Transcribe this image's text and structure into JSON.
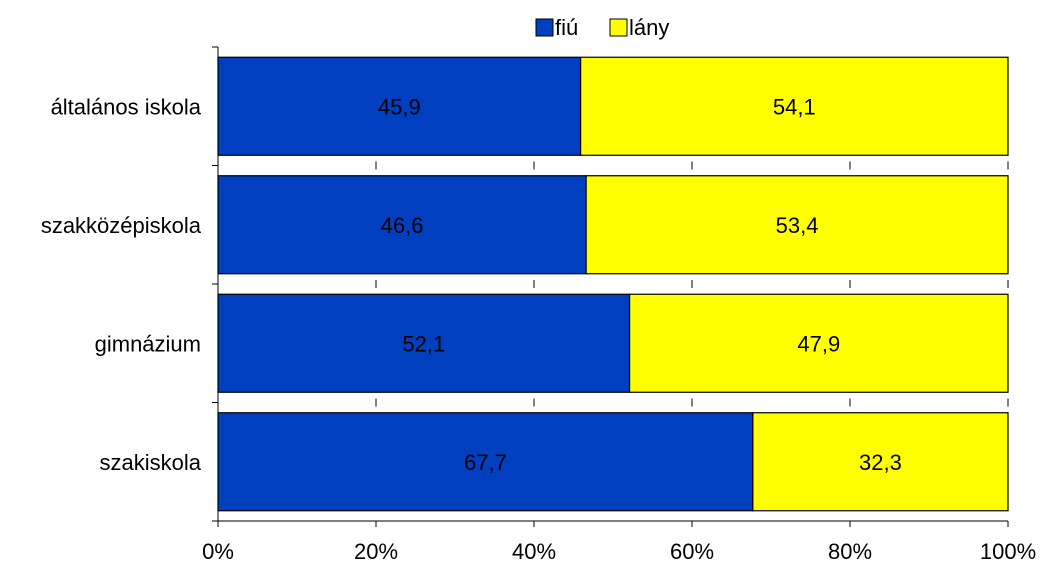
{
  "chart_data": {
    "type": "bar",
    "orientation": "horizontal",
    "stacked": "percent",
    "categories": [
      "általános iskola",
      "szakközépiskola",
      "gimnázium",
      "szakiskola"
    ],
    "series": [
      {
        "name": "fiú",
        "color": "#0040C0",
        "values": [
          45.9,
          46.6,
          52.1,
          67.7
        ]
      },
      {
        "name": "lány",
        "color": "#FFFF00",
        "values": [
          54.1,
          53.4,
          47.9,
          32.3
        ]
      }
    ],
    "data_labels": [
      [
        "45,9",
        "46,6",
        "52,1",
        "67,7"
      ],
      [
        "54,1",
        "53,4",
        "47,9",
        "32,3"
      ]
    ],
    "x_ticks": [
      "0%",
      "20%",
      "40%",
      "60%",
      "80%",
      "100%"
    ],
    "xlim": [
      0,
      100
    ],
    "legend_position": "top",
    "grid": false
  }
}
